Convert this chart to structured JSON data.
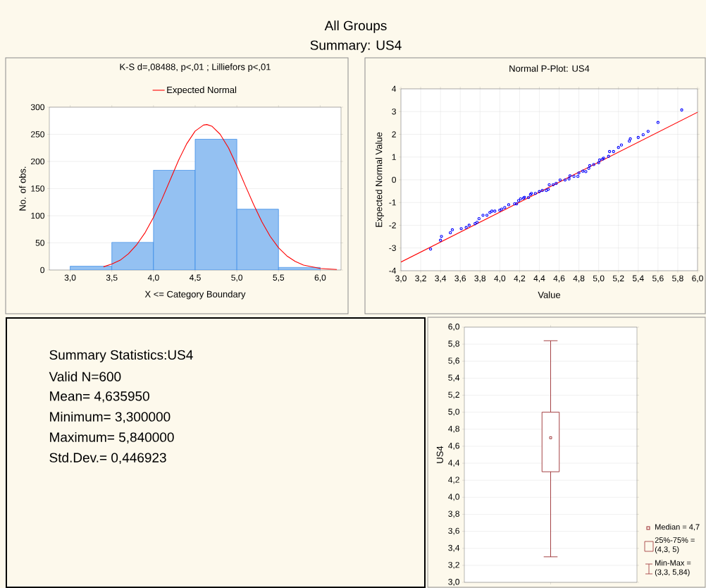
{
  "chart_data": [
    {
      "type": "other",
      "title": "All Groups",
      "subtitle": "Summary: US4"
    },
    {
      "type": "histogram",
      "title": "K-S d=,08488, p<,01 ; Lilliefors p<,01",
      "xlabel": "X <= Category Boundary",
      "ylabel": "No. of obs.",
      "bins": [
        3.0,
        3.5,
        4.0,
        4.5,
        5.0,
        5.5,
        6.0
      ],
      "values": [
        7,
        51,
        184,
        241,
        112,
        5
      ],
      "color": "#3d8ee8",
      "series": [
        {
          "type": "line",
          "name": "Expected Normal",
          "color": "#ff0000",
          "x": [
            3.4,
            3.5,
            3.6,
            3.7,
            3.8,
            3.9,
            4.0,
            4.1,
            4.2,
            4.3,
            4.4,
            4.5,
            4.6,
            4.64,
            4.7,
            4.8,
            4.9,
            5.0,
            5.1,
            5.2,
            5.3,
            5.4,
            5.5,
            5.6,
            5.7,
            5.8,
            6.0,
            6.2
          ],
          "values": [
            6,
            11,
            18,
            30,
            47,
            69,
            97,
            130,
            166,
            202,
            233,
            256,
            267,
            268,
            265,
            250,
            225,
            192,
            156,
            121,
            89,
            62,
            41,
            26,
            16,
            9,
            3,
            1
          ]
        }
      ],
      "xlim": [
        2.75,
        6.25
      ],
      "ylim": [
        0,
        300
      ],
      "xticks": [
        {
          "value": 3.0,
          "label": "3,0"
        },
        {
          "value": 3.5,
          "label": "3,5"
        },
        {
          "value": 4.0,
          "label": "4,0"
        },
        {
          "value": 4.5,
          "label": "4,5"
        },
        {
          "value": 5.0,
          "label": "5,0"
        },
        {
          "value": 5.5,
          "label": "5,5"
        },
        {
          "value": 6.0,
          "label": "6,0"
        }
      ],
      "yticks": [
        0,
        50,
        100,
        150,
        200,
        250,
        300
      ],
      "grid": "y",
      "legend": "top"
    },
    {
      "type": "scatter",
      "title": "Normal P-Plot: US4",
      "xlabel": "Value",
      "ylabel": "Expected Normal Value",
      "series": [
        {
          "type": "scatter",
          "color": "#0000ff",
          "marker": "circle",
          "x": [
            3.3,
            3.4,
            3.41,
            3.5,
            3.52,
            3.61,
            3.66,
            3.69,
            3.75,
            3.77,
            3.79,
            3.83,
            3.87,
            3.9,
            3.92,
            3.95,
            4.0,
            4.02,
            4.05,
            4.09,
            4.15,
            4.17,
            4.19,
            4.21,
            4.24,
            4.25,
            4.29,
            4.31,
            4.32,
            4.36,
            4.4,
            4.43,
            4.47,
            4.49,
            4.5,
            4.54,
            4.57,
            4.61,
            4.66,
            4.7,
            4.71,
            4.75,
            4.79,
            4.8,
            4.84,
            4.87,
            4.9,
            4.91,
            4.95,
            5.0,
            5.01,
            5.04,
            5.05,
            5.1,
            5.11,
            5.15,
            5.2,
            5.23,
            5.31,
            5.32,
            5.4,
            5.45,
            5.5,
            5.6,
            5.84
          ],
          "values": [
            -3.05,
            -2.66,
            -2.49,
            -2.33,
            -2.2,
            -2.15,
            -2.1,
            -2.0,
            -1.93,
            -1.87,
            -1.71,
            -1.56,
            -1.56,
            -1.44,
            -1.38,
            -1.38,
            -1.34,
            -1.29,
            -1.22,
            -1.1,
            -1.06,
            -1.06,
            -0.92,
            -0.84,
            -0.81,
            -0.77,
            -0.78,
            -0.65,
            -0.6,
            -0.6,
            -0.52,
            -0.47,
            -0.47,
            -0.42,
            -0.22,
            -0.22,
            -0.16,
            -0.01,
            -0.01,
            0.04,
            0.17,
            0.15,
            0.15,
            0.3,
            0.38,
            0.36,
            0.5,
            0.62,
            0.67,
            0.75,
            0.87,
            0.91,
            0.95,
            1.03,
            1.24,
            1.24,
            1.42,
            1.53,
            1.7,
            1.8,
            1.86,
            1.98,
            2.13,
            2.52,
            3.07
          ]
        },
        {
          "type": "line",
          "color": "#ff0000",
          "x": [
            3.0,
            6.0
          ],
          "values": [
            -3.62,
            2.97
          ]
        }
      ],
      "xlim": [
        3.0,
        6.0
      ],
      "ylim": [
        -4,
        4
      ],
      "xticks": [
        {
          "value": 3.0,
          "label": "3,0"
        },
        {
          "value": 3.2,
          "label": "3,2"
        },
        {
          "value": 3.4,
          "label": "3,4"
        },
        {
          "value": 3.6,
          "label": "3,6"
        },
        {
          "value": 3.8,
          "label": "3,8"
        },
        {
          "value": 4.0,
          "label": "4,0"
        },
        {
          "value": 4.2,
          "label": "4,2"
        },
        {
          "value": 4.4,
          "label": "4,4"
        },
        {
          "value": 4.6,
          "label": "4,6"
        },
        {
          "value": 4.8,
          "label": "4,8"
        },
        {
          "value": 5.0,
          "label": "5,0"
        },
        {
          "value": 5.2,
          "label": "5,2"
        },
        {
          "value": 5.4,
          "label": "5,4"
        },
        {
          "value": 5.6,
          "label": "5,6"
        },
        {
          "value": 5.8,
          "label": "5,8"
        },
        {
          "value": 6.0,
          "label": "6,0"
        }
      ],
      "yticks": [
        -4,
        -3,
        -2,
        -1,
        0,
        1,
        2,
        3,
        4
      ],
      "grid": true
    },
    {
      "type": "other",
      "title": "Summary Statistics:US4",
      "annotations": [
        "Valid N=600",
        "Mean= 4,635950",
        "Minimum= 3,300000",
        "Maximum= 5,840000",
        "Std.Dev.= 0,446923"
      ]
    },
    {
      "type": "box",
      "ylabel": "US4",
      "categories": [
        null
      ],
      "color": "#9b2d30",
      "boxes": [
        {
          "low": 3.3,
          "q1": 4.3,
          "median": 4.7,
          "q3": 5.0,
          "high": 5.84
        }
      ],
      "ylim": [
        3.0,
        6.0
      ],
      "yticks": [
        {
          "value": 3.0,
          "label": "3,0"
        },
        {
          "value": 3.2,
          "label": "3,2"
        },
        {
          "value": 3.4,
          "label": "3,4"
        },
        {
          "value": 3.6,
          "label": "3,6"
        },
        {
          "value": 3.8,
          "label": "3,8"
        },
        {
          "value": 4.0,
          "label": "4,0"
        },
        {
          "value": 4.2,
          "label": "4,2"
        },
        {
          "value": 4.4,
          "label": "4,4"
        },
        {
          "value": 4.6,
          "label": "4,6"
        },
        {
          "value": 4.8,
          "label": "4,8"
        },
        {
          "value": 5.0,
          "label": "5,0"
        },
        {
          "value": 5.2,
          "label": "5,2"
        },
        {
          "value": 5.4,
          "label": "5,4"
        },
        {
          "value": 5.6,
          "label": "5,6"
        },
        {
          "value": 5.8,
          "label": "5,8"
        },
        {
          "value": 6.0,
          "label": "6,0"
        }
      ],
      "grid": "y",
      "annotations": [
        "Median = 4,7",
        "25%-75% = (4,3, 5)",
        "Min-Max = (3,3, 5,84)"
      ]
    }
  ]
}
